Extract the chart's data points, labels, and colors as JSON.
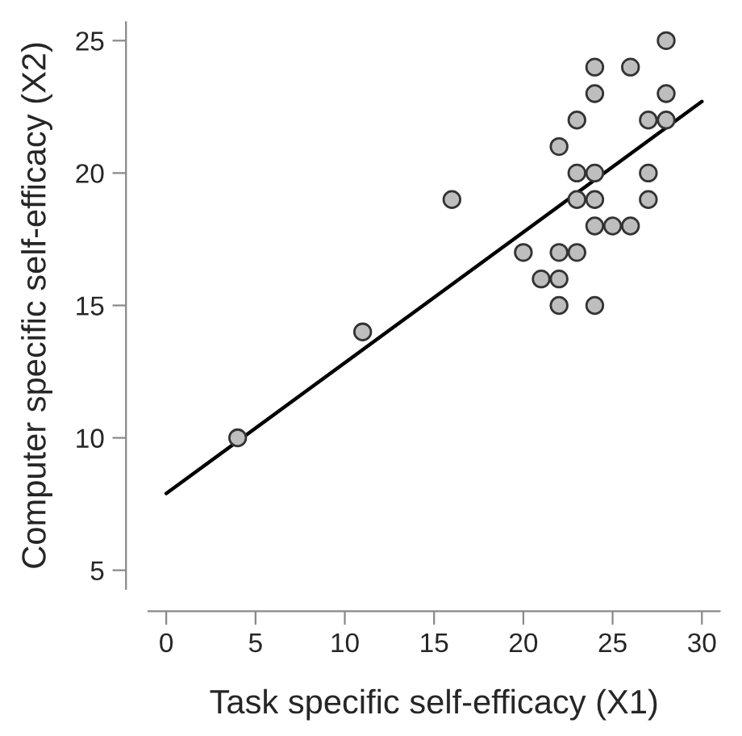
{
  "chart_data": {
    "type": "scatter",
    "xlabel": "Task specific self-efficacy (X1)",
    "ylabel": "Computer specific self-efficacy (X2)",
    "xlim": [
      -1,
      31
    ],
    "ylim": [
      4.3,
      25.7
    ],
    "xticks": [
      0,
      5,
      10,
      15,
      20,
      25,
      30
    ],
    "yticks": [
      5,
      10,
      15,
      20,
      25
    ],
    "grid": false,
    "series": [
      {
        "marker": "circle",
        "color": "#bebebe",
        "x": [
          4,
          11,
          16,
          20,
          21,
          22,
          22,
          22,
          22,
          23,
          23,
          23,
          23,
          24,
          24,
          24,
          24,
          24,
          24,
          25,
          26,
          26,
          27,
          27,
          27,
          28,
          28,
          28
        ],
        "values": [
          10,
          14,
          19,
          17,
          16,
          15,
          16,
          17,
          21,
          17,
          19,
          20,
          22,
          15,
          18,
          19,
          20,
          23,
          24,
          18,
          18,
          24,
          19,
          20,
          22,
          22,
          23,
          25
        ]
      },
      {
        "type": "line",
        "color": "#000000",
        "line_style": "solid",
        "marker": "none",
        "x": [
          0,
          30
        ],
        "values": [
          7.9,
          22.7
        ]
      }
    ]
  }
}
